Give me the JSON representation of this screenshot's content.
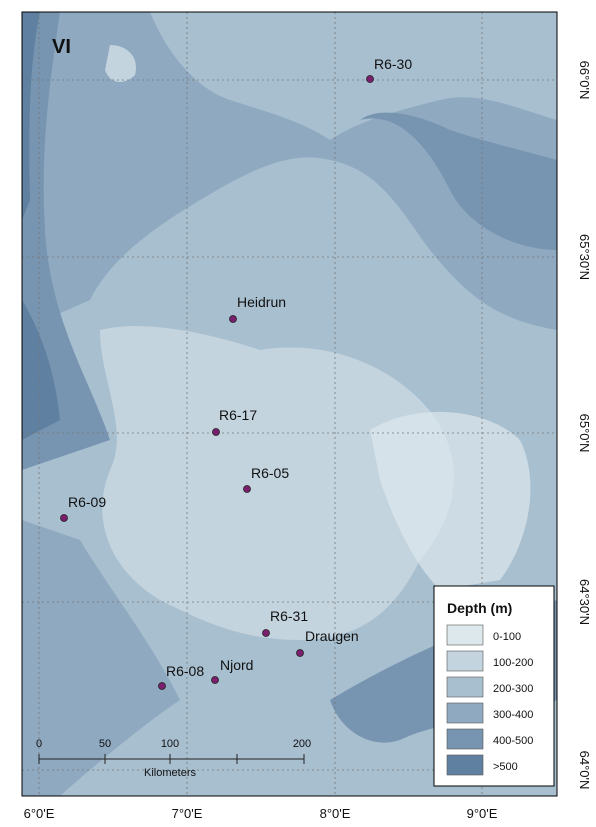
{
  "panel_label": "VI",
  "stations": [
    {
      "label": "R6-30"
    },
    {
      "label": "Heidrun"
    },
    {
      "label": "R6-17"
    },
    {
      "label": "R6-05"
    },
    {
      "label": "R6-09"
    },
    {
      "label": "R6-31"
    },
    {
      "label": "Draugen"
    },
    {
      "label": "R6-08"
    },
    {
      "label": "Njord"
    }
  ],
  "lon_ticks": [
    "6°0'E",
    "7°0'E",
    "8°0'E",
    "9°0'E"
  ],
  "lat_ticks": [
    "66°0'N",
    "65°30'N",
    "65°0'N",
    "64°30'N",
    "64°0'N"
  ],
  "legend": {
    "title": "Depth (m)",
    "entries": [
      "0-100",
      "100-200",
      "200-300",
      "300-400",
      "400-500",
      ">500"
    ]
  },
  "scale_bar": {
    "labels": [
      0,
      50,
      100,
      200
    ],
    "unit": "Kilometers"
  }
}
